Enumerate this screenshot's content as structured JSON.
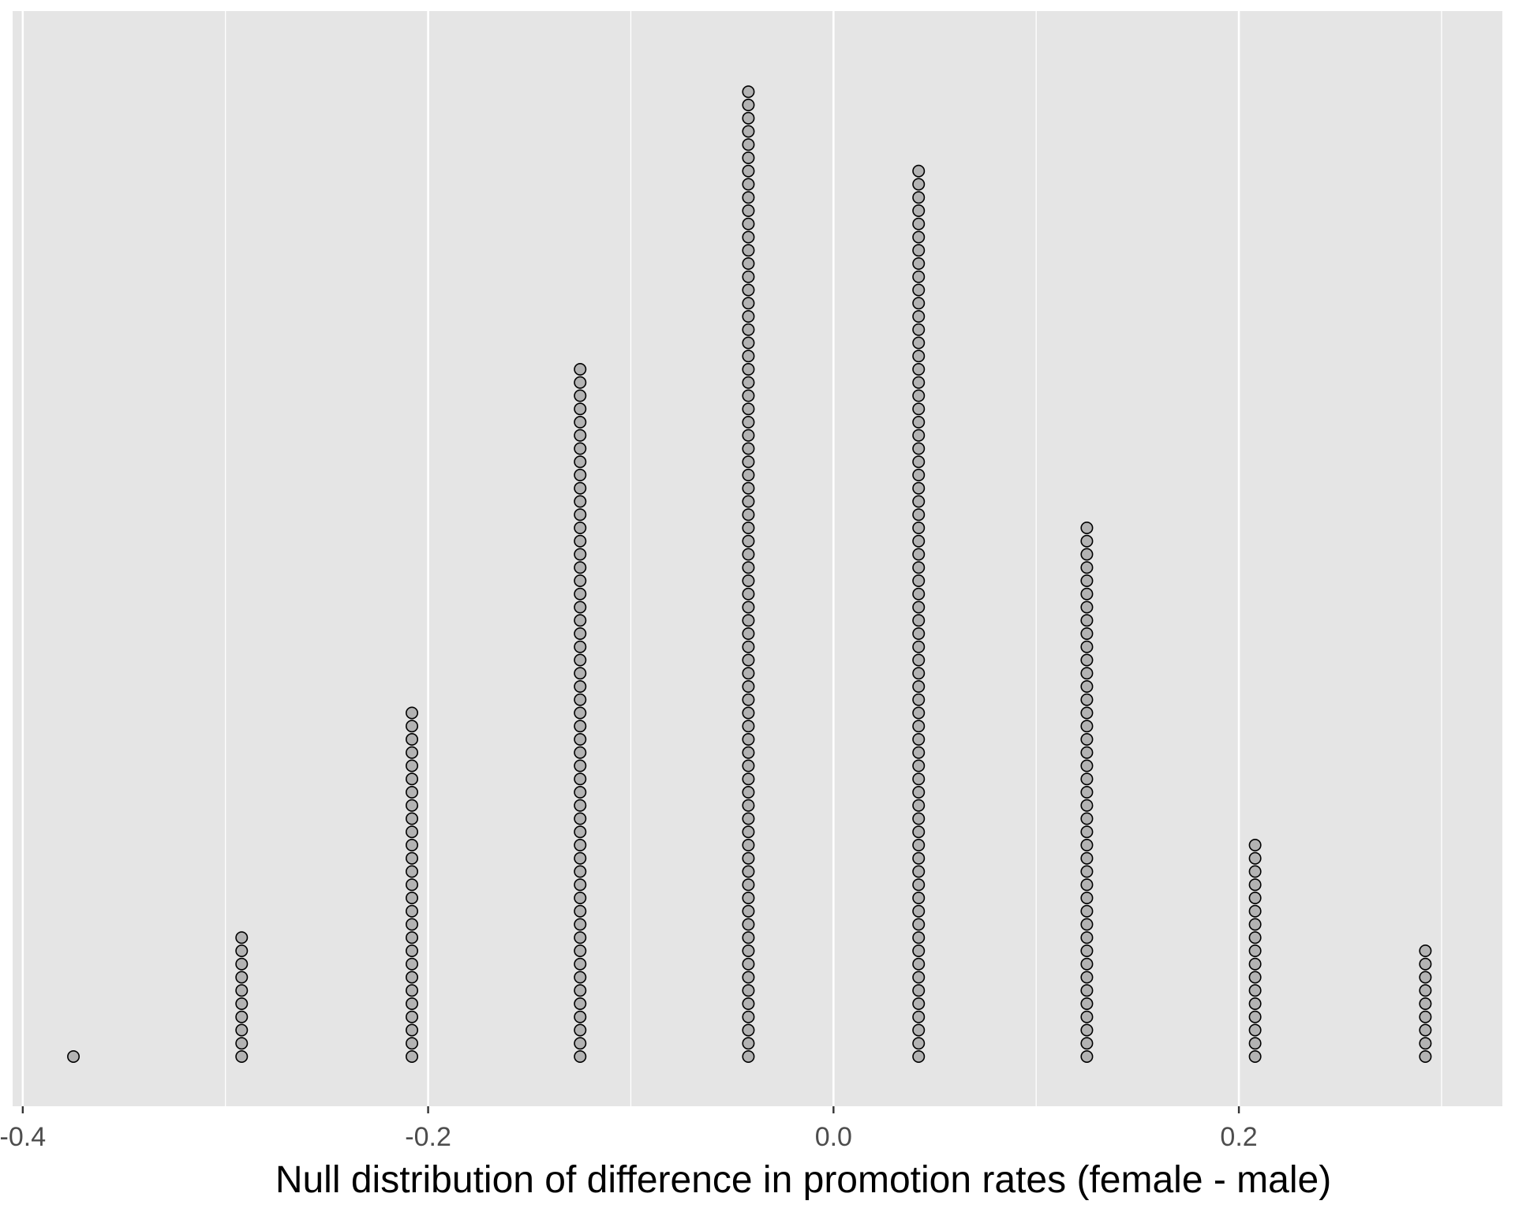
{
  "chart_data": {
    "type": "dotplot",
    "title": "",
    "xlabel": "Null distribution of difference in promotion rates (female - male)",
    "ylabel": "",
    "xlim": [
      -0.405,
      0.33
    ],
    "x_ticks": [
      -0.4,
      -0.2,
      0.0,
      0.2
    ],
    "x_tick_labels": [
      "-0.4",
      "-0.2",
      "0.0",
      "0.2"
    ],
    "grid": true,
    "legend": "none",
    "colors": {
      "panel_background": "#e5e5e5",
      "grid": "#ffffff",
      "dot_fill": "#b3b3b3",
      "dot_stroke": "#000000"
    },
    "bins": [
      {
        "x": -0.375,
        "count": 1
      },
      {
        "x": -0.292,
        "count": 10
      },
      {
        "x": -0.208,
        "count": 27
      },
      {
        "x": -0.125,
        "count": 53
      },
      {
        "x": -0.042,
        "count": 74
      },
      {
        "x": 0.042,
        "count": 68
      },
      {
        "x": 0.125,
        "count": 41
      },
      {
        "x": 0.208,
        "count": 17
      },
      {
        "x": 0.292,
        "count": 9
      }
    ]
  }
}
